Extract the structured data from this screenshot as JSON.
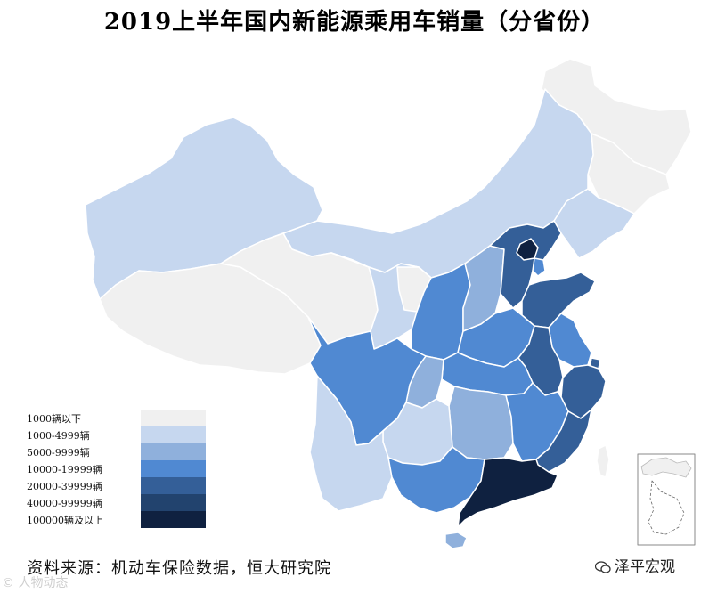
{
  "title": "2019上半年国内新能源乘用车销量（分省份）",
  "source": "资料来源：机动车保险数据，恒大研究院",
  "wechat_account": "泽平宏观",
  "watermark": "© 人物动态",
  "colors": {
    "lt1000": "#f0f0f0",
    "c1000_4999": "#c6d7ef",
    "c5000_9999": "#8fb0dc",
    "c10000_19999": "#5089d2",
    "c20000_39999": "#345f98",
    "c40000_99999": "#22436e",
    "c100000plus": "#0f2140",
    "border": "#ffffff",
    "inset_land": "#f0f0f0"
  },
  "legend": [
    {
      "label": "1000辆以下",
      "color": "#f0f0f0"
    },
    {
      "label": "1000-4999辆",
      "color": "#c6d7ef"
    },
    {
      "label": "5000-9999辆",
      "color": "#8fb0dc"
    },
    {
      "label": "10000-19999辆",
      "color": "#5089d2"
    },
    {
      "label": "20000-39999辆",
      "color": "#345f98"
    },
    {
      "label": "40000-99999辆",
      "color": "#22436e"
    },
    {
      "label": "100000辆及以上",
      "color": "#0f2140"
    }
  ],
  "regions": [
    {
      "id": "heilongjiang",
      "bin": "1000辆以下"
    },
    {
      "id": "jilin",
      "bin": "1000辆以下"
    },
    {
      "id": "liaoning",
      "bin": "1000-4999辆"
    },
    {
      "id": "inner-mongolia",
      "bin": "1000-4999辆"
    },
    {
      "id": "xinjiang",
      "bin": "1000-4999辆"
    },
    {
      "id": "tibet",
      "bin": "1000辆以下"
    },
    {
      "id": "qinghai",
      "bin": "1000辆以下"
    },
    {
      "id": "gansu",
      "bin": "1000-4999辆"
    },
    {
      "id": "ningxia",
      "bin": "1000辆以下"
    },
    {
      "id": "shaanxi",
      "bin": "10000-19999辆"
    },
    {
      "id": "shanxi",
      "bin": "5000-9999辆"
    },
    {
      "id": "hebei",
      "bin": "20000-39999辆"
    },
    {
      "id": "beijing",
      "bin": "100000辆及以上"
    },
    {
      "id": "tianjin",
      "bin": "10000-19999辆"
    },
    {
      "id": "shandong",
      "bin": "20000-39999辆"
    },
    {
      "id": "henan",
      "bin": "10000-19999辆"
    },
    {
      "id": "jiangsu",
      "bin": "10000-19999辆"
    },
    {
      "id": "anhui",
      "bin": "20000-39999辆"
    },
    {
      "id": "shanghai",
      "bin": "20000-39999辆"
    },
    {
      "id": "zhejiang",
      "bin": "20000-39999辆"
    },
    {
      "id": "hubei",
      "bin": "10000-19999辆"
    },
    {
      "id": "sichuan",
      "bin": "10000-19999辆"
    },
    {
      "id": "chongqing",
      "bin": "5000-9999辆"
    },
    {
      "id": "hunan",
      "bin": "5000-9999辆"
    },
    {
      "id": "jiangxi",
      "bin": "10000-19999辆"
    },
    {
      "id": "fujian",
      "bin": "20000-39999辆"
    },
    {
      "id": "guizhou",
      "bin": "1000-4999辆"
    },
    {
      "id": "yunnan",
      "bin": "1000-4999辆"
    },
    {
      "id": "guangxi",
      "bin": "10000-19999辆"
    },
    {
      "id": "guangdong",
      "bin": "100000辆及以上"
    },
    {
      "id": "hainan",
      "bin": "5000-9999辆"
    },
    {
      "id": "taiwan",
      "bin": "1000辆以下"
    }
  ]
}
